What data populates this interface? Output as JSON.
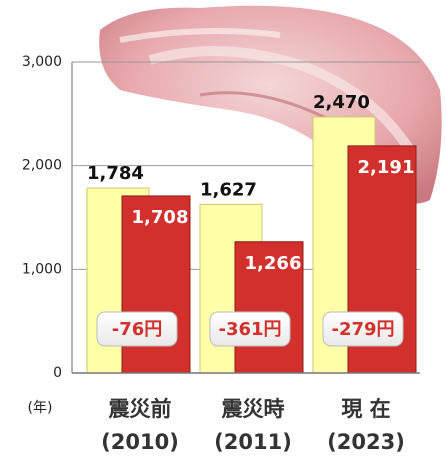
{
  "chart_data": {
    "type": "bar",
    "unit_label": "(年)",
    "categories": [
      "震災前",
      "震災時",
      "現 在"
    ],
    "category_years": [
      "(2010)",
      "(2011)",
      "(2023)"
    ],
    "series": [
      {
        "color": "#ffffa8",
        "values": [
          1784,
          1627,
          2470
        ],
        "value_labels": [
          "1,784",
          "1,627",
          "2,470"
        ]
      },
      {
        "color": "#d2302c",
        "values": [
          1708,
          1266,
          2191
        ],
        "value_labels": [
          "1,708",
          "1,266",
          "2,191"
        ]
      }
    ],
    "differences": {
      "values": [
        -76,
        -361,
        -279
      ],
      "value_labels": [
        "-76円",
        "-361円",
        "-279円"
      ]
    },
    "ylim": [
      0,
      3000
    ],
    "yticks": [
      0,
      {
        "value": 1000,
        "label": "1,000"
      },
      {
        "value": 2000,
        "label": "2,000"
      },
      {
        "value": 3000,
        "label": "3,000"
      }
    ],
    "grid": true
  }
}
